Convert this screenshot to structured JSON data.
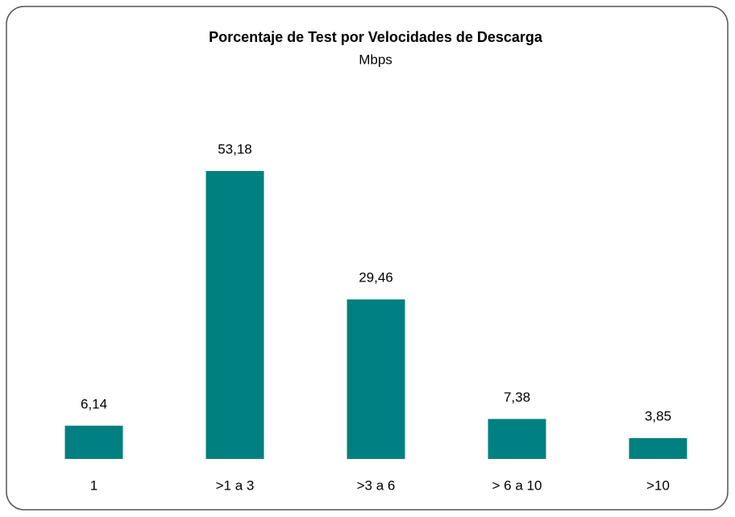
{
  "chart_data": {
    "type": "bar",
    "title": "Porcentaje de Test por Velocidades de Descarga",
    "subtitle": "Mbps",
    "categories": [
      "1",
      ">1 a 3",
      ">3 a 6",
      "> 6 a 10",
      ">10"
    ],
    "values": [
      6.14,
      53.18,
      29.46,
      7.38,
      3.85
    ],
    "value_labels": [
      "6,14",
      "53,18",
      "29,46",
      "7,38",
      "3,85"
    ],
    "color": "#008080",
    "grid": false
  }
}
